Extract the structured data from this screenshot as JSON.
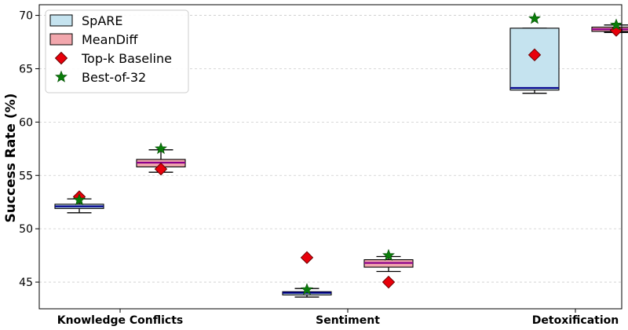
{
  "chart_data": {
    "type": "box",
    "title": "",
    "xlabel": "",
    "ylabel": "Success Rate (%)",
    "categories": [
      "Knowledge Conflicts",
      "Sentiment",
      "Detoxification"
    ],
    "yticks": [
      45,
      50,
      55,
      60,
      65,
      70
    ],
    "ylim": [
      42.5,
      71
    ],
    "grid": true,
    "legend_position": "top-left",
    "legend": [
      {
        "label": "SpARE",
        "kind": "box",
        "color": "#c5e3ef"
      },
      {
        "label": "MeanDiff",
        "kind": "box",
        "color": "#f2a7ad"
      },
      {
        "label": "Top-k Baseline",
        "kind": "diamond",
        "color": "#e8000b"
      },
      {
        "label": "Best-of-32",
        "kind": "star",
        "color": "#0a7d0a"
      }
    ],
    "series": [
      {
        "name": "SpARE",
        "fill": "#c5e3ef",
        "median_color": "#00008b",
        "boxes": [
          {
            "category": "Knowledge Conflicts",
            "whisker_low": 51.5,
            "q1": 51.9,
            "median": 52.1,
            "q3": 52.3,
            "whisker_high": 52.8
          },
          {
            "category": "Sentiment",
            "whisker_low": 43.6,
            "q1": 43.8,
            "median": 44.0,
            "q3": 44.1,
            "whisker_high": 44.4
          },
          {
            "category": "Detoxification",
            "whisker_low": 62.7,
            "q1": 63.0,
            "median": 63.2,
            "q3": 68.8,
            "whisker_high": 68.8
          }
        ]
      },
      {
        "name": "MeanDiff",
        "fill": "#f2a7ad",
        "median_color": "#8b008b",
        "boxes": [
          {
            "category": "Knowledge Conflicts",
            "whisker_low": 55.3,
            "q1": 55.8,
            "median": 56.2,
            "q3": 56.5,
            "whisker_high": 57.4
          },
          {
            "category": "Sentiment",
            "whisker_low": 46.0,
            "q1": 46.4,
            "median": 46.8,
            "q3": 47.1,
            "whisker_high": 47.4
          },
          {
            "category": "Detoxification",
            "whisker_low": 68.4,
            "q1": 68.5,
            "median": 68.7,
            "q3": 68.9,
            "whisker_high": 69.1
          }
        ]
      }
    ],
    "markers": {
      "top_k_baseline": {
        "marker": "diamond",
        "color": "#e8000b",
        "points": [
          {
            "series": "SpARE",
            "category": "Knowledge Conflicts",
            "value": 53.0
          },
          {
            "series": "MeanDiff",
            "category": "Knowledge Conflicts",
            "value": 55.6
          },
          {
            "series": "SpARE",
            "category": "Sentiment",
            "value": 47.3
          },
          {
            "series": "MeanDiff",
            "category": "Sentiment",
            "value": 45.0
          },
          {
            "series": "SpARE",
            "category": "Detoxification",
            "value": 66.3
          },
          {
            "series": "MeanDiff",
            "category": "Detoxification",
            "value": 68.6
          }
        ]
      },
      "best_of_32": {
        "marker": "star",
        "color": "#0a7d0a",
        "points": [
          {
            "series": "SpARE",
            "category": "Knowledge Conflicts",
            "value": 52.7
          },
          {
            "series": "MeanDiff",
            "category": "Knowledge Conflicts",
            "value": 57.5
          },
          {
            "series": "SpARE",
            "category": "Sentiment",
            "value": 44.3
          },
          {
            "series": "MeanDiff",
            "category": "Sentiment",
            "value": 47.5
          },
          {
            "series": "SpARE",
            "category": "Detoxification",
            "value": 69.7
          },
          {
            "series": "MeanDiff",
            "category": "Detoxification",
            "value": 69.1
          }
        ]
      }
    }
  }
}
